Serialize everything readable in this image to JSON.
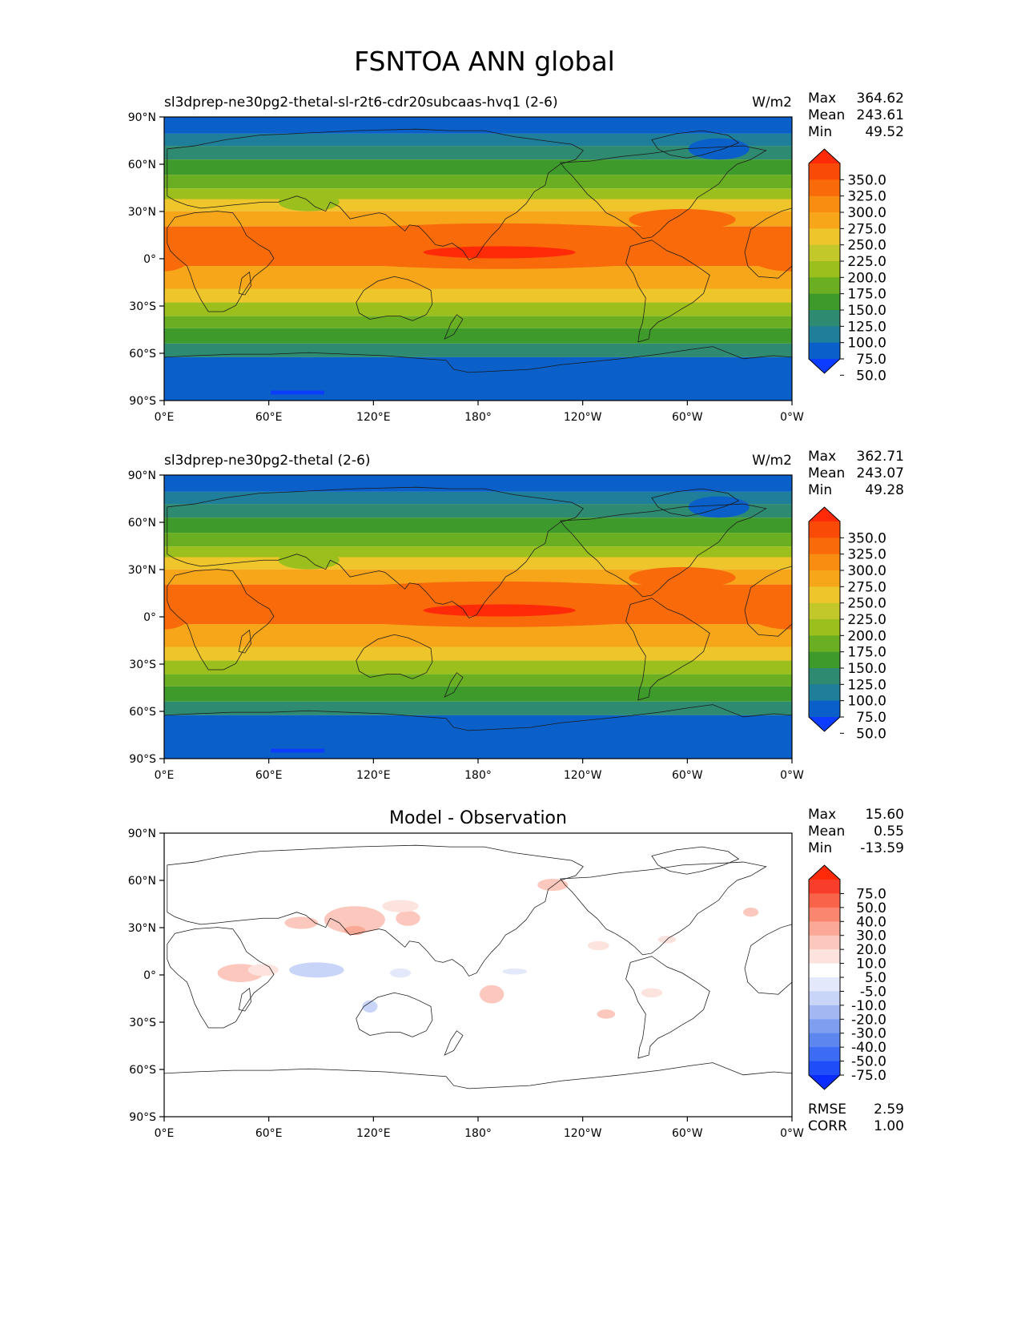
{
  "figure": {
    "title": "FSNTOA ANN global"
  },
  "axes": {
    "lat_ticks": [
      "90°N",
      "60°N",
      "30°N",
      "0°",
      "30°S",
      "60°S",
      "90°S"
    ],
    "lon_ticks": [
      "0°E",
      "60°E",
      "120°E",
      "180°",
      "120°W",
      "60°W",
      "0°W"
    ]
  },
  "palettes": {
    "main": [
      "#0b3cff",
      "#0a5fc9",
      "#1f7f9a",
      "#2f8a72",
      "#3f9a2c",
      "#6aae22",
      "#9bbf1c",
      "#c2c82a",
      "#eec52b",
      "#f7a61a",
      "#f98d12",
      "#f96b0a",
      "#f94a08",
      "#ff2a08"
    ],
    "diff": [
      "#0a2cff",
      "#1f4ef9",
      "#3d6cf4",
      "#5e86ef",
      "#7e9ff0",
      "#a3b8f3",
      "#c9d5f8",
      "#e3e9fb",
      "#ffffff",
      "#fde3de",
      "#fcc8bd",
      "#fba897",
      "#fa8670",
      "#f9634a",
      "#f83e2a",
      "#ff2a08"
    ]
  },
  "panels": [
    {
      "left_title": "sl3dprep-ne30pg2-thetal-sl-r2t6-cdr20subcaas-hvq1 (2-6)",
      "center_title": "",
      "units": "W/m2",
      "stats": {
        "max_label": "Max",
        "max": "364.62",
        "mean_label": "Mean",
        "mean": "243.61",
        "min_label": "Min",
        "min": "49.52"
      },
      "colorbar_labels": [
        "350.0",
        "325.0",
        "300.0",
        "275.0",
        "250.0",
        "225.0",
        "200.0",
        "175.0",
        "150.0",
        "125.0",
        "100.0",
        "75.0",
        "50.0"
      ],
      "rmse_label": "",
      "rmse": "",
      "corr_label": "",
      "corr": ""
    },
    {
      "left_title": "sl3dprep-ne30pg2-thetal (2-6)",
      "center_title": "",
      "units": "W/m2",
      "stats": {
        "max_label": "Max",
        "max": "362.71",
        "mean_label": "Mean",
        "mean": "243.07",
        "min_label": "Min",
        "min": "49.28"
      },
      "colorbar_labels": [
        "350.0",
        "325.0",
        "300.0",
        "275.0",
        "250.0",
        "225.0",
        "200.0",
        "175.0",
        "150.0",
        "125.0",
        "100.0",
        "75.0",
        "50.0"
      ],
      "rmse_label": "",
      "rmse": "",
      "corr_label": "",
      "corr": ""
    },
    {
      "left_title": "",
      "center_title": "Model - Observation",
      "units": "",
      "stats": {
        "max_label": "Max",
        "max": "15.60",
        "mean_label": "Mean",
        "mean": "0.55",
        "min_label": "Min",
        "min": "-13.59"
      },
      "colorbar_labels": [
        "75.0",
        "50.0",
        "40.0",
        "30.0",
        "20.0",
        "10.0",
        "5.0",
        "-5.0",
        "-10.0",
        "-20.0",
        "-30.0",
        "-40.0",
        "-50.0",
        "-75.0"
      ],
      "rmse_label": "RMSE",
      "rmse": "2.59",
      "corr_label": "CORR",
      "corr": "1.00"
    }
  ]
}
